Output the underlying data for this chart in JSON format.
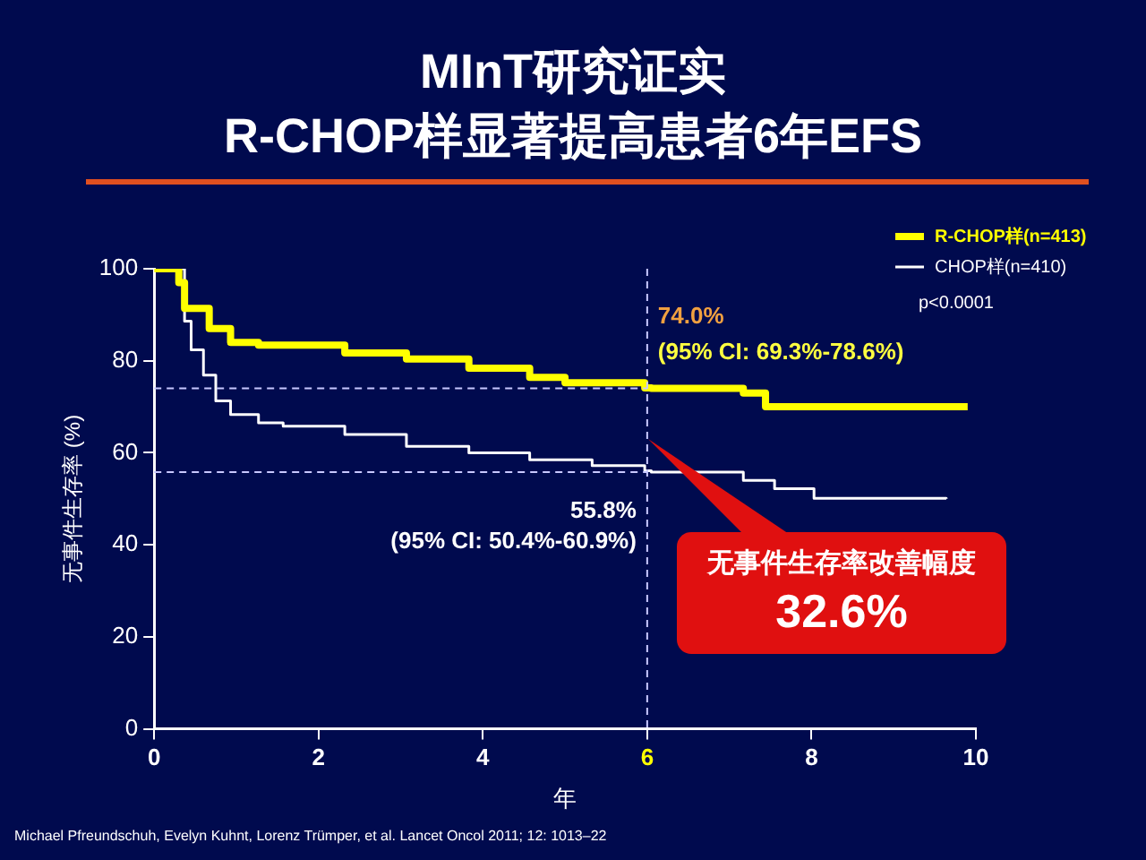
{
  "chart_data": {
    "type": "step",
    "title": "MInT研究证实\nR-CHOP样显著提高患者6年EFS",
    "xlabel": "年",
    "ylabel": "无事件生存率 (%)",
    "series": [
      {
        "name": "R-CHOP样(n=413)",
        "color": "#ffff00",
        "x": [
          0,
          0.3,
          0.37,
          0.67,
          0.93,
          1.27,
          2.32,
          3.07,
          3.83,
          4.57,
          5.0,
          5.97,
          6.05,
          7.17,
          7.44,
          9.9
        ],
        "values": [
          100,
          97,
          91.4,
          87,
          84,
          83.4,
          81.7,
          80.4,
          78.4,
          76.4,
          75.2,
          74.1,
          74.0,
          73,
          70,
          70
        ]
      },
      {
        "name": "CHOP样(n=410)",
        "color": "#ffffff",
        "x": [
          0,
          0.37,
          0.45,
          0.6,
          0.75,
          0.93,
          1.27,
          1.57,
          2.32,
          3.07,
          3.83,
          4.57,
          5.33,
          5.97,
          6.05,
          7.17,
          7.55,
          8.03,
          9.64
        ],
        "values": [
          100,
          88.6,
          82.4,
          76.9,
          71.3,
          68.3,
          66.5,
          65.8,
          64,
          61.4,
          60,
          58.5,
          57.2,
          56.1,
          55.8,
          54,
          52.2,
          50.1,
          50
        ]
      }
    ],
    "xlim": [
      0,
      10
    ],
    "xticks": [
      0,
      2,
      4,
      6,
      8,
      10
    ],
    "ylim": [
      0,
      100
    ],
    "yticks": [
      0,
      20,
      40,
      60,
      80,
      100
    ],
    "grid": false,
    "legend": "top right",
    "ref_lines": [
      {
        "axis": "y",
        "value": 74.0,
        "line_style": "dashed"
      },
      {
        "axis": "y",
        "value": 55.8,
        "line_style": "dashed"
      },
      {
        "axis": "x",
        "value": 6,
        "line_style": "dashed"
      }
    ],
    "annotations": [
      {
        "text": "74.0%\n(95% CI: 69.3%-78.6%)",
        "x": 6,
        "y": 74.0
      },
      {
        "text": "55.8%\n(95% CI: 50.4%-60.9%)",
        "x": 6,
        "y": 55.8
      },
      "无事件生存率改善幅度\n32.6%",
      "p<0.0001",
      "Michael Pfreundschuh, Evelyn Kuhnt, Lorenz Trümper, et al. Lancet Oncol 2011; 12: 1013–22"
    ]
  }
}
